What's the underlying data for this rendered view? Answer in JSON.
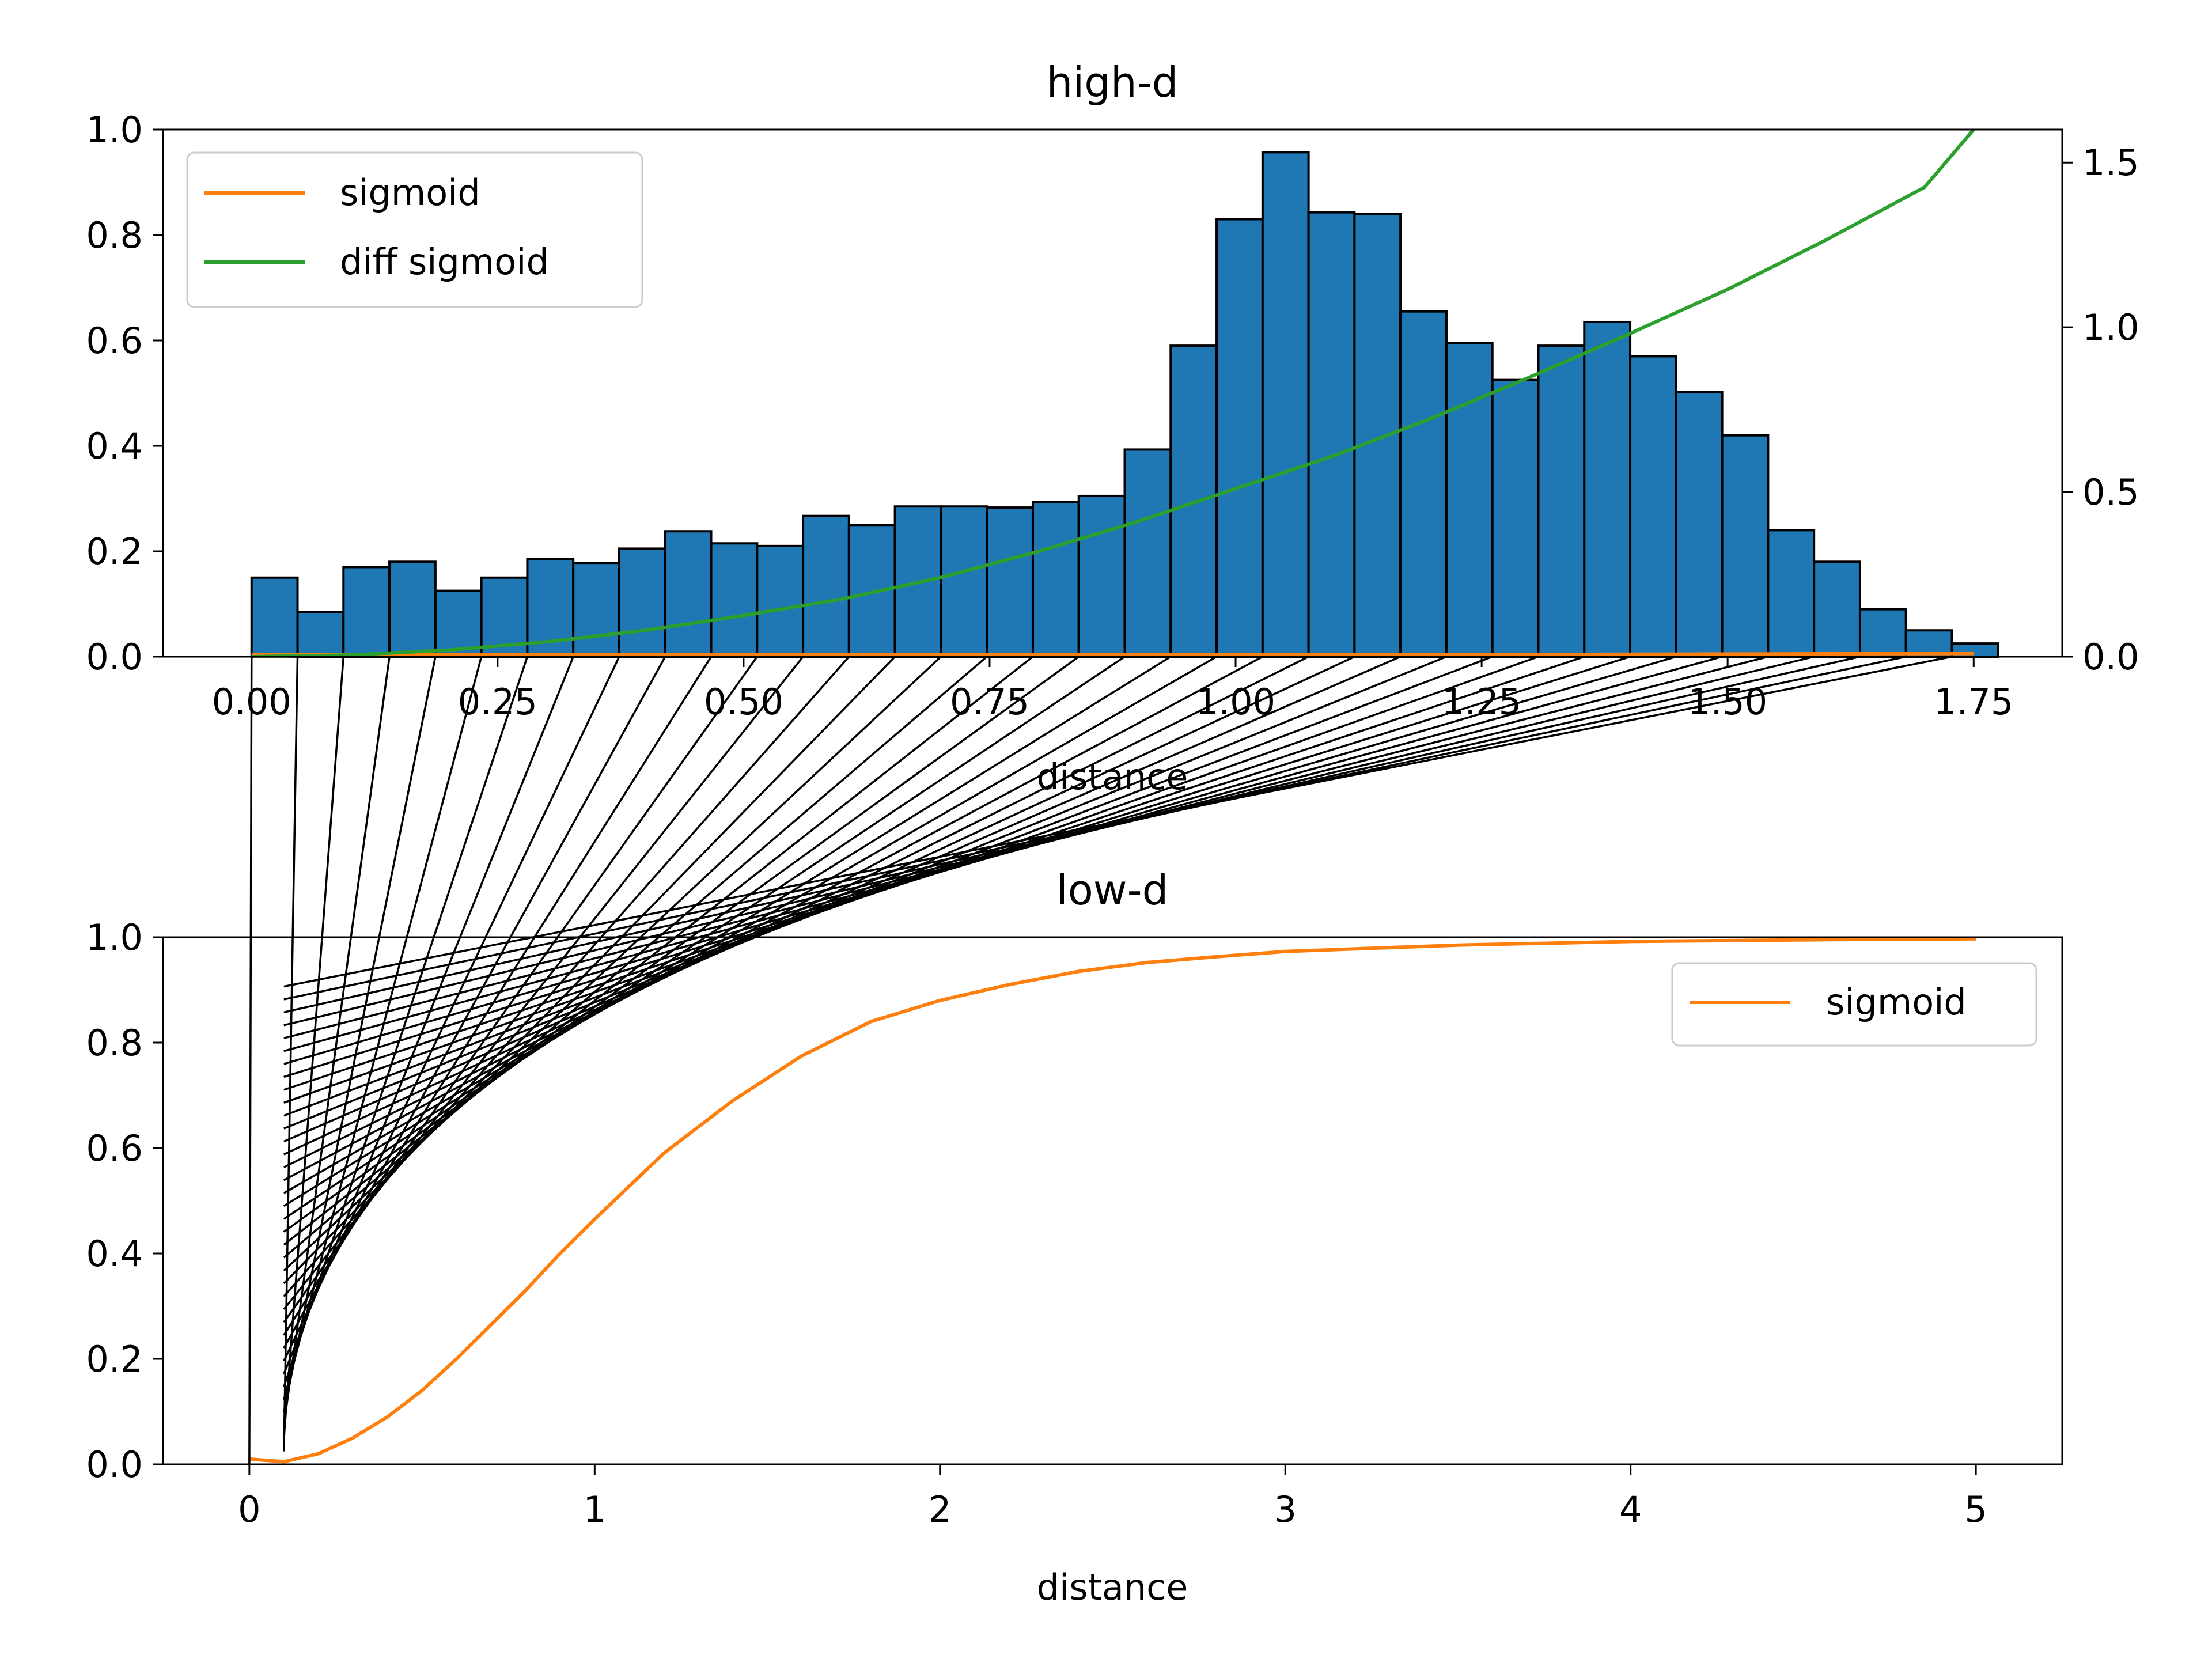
{
  "chart_data": [
    {
      "type": "bar",
      "title": "high-d",
      "xlabel": "distance",
      "ylabel": "",
      "xlim": [
        -0.09,
        1.84
      ],
      "ylim": [
        0,
        1.0
      ],
      "y2lim": [
        0,
        1.6
      ],
      "xticks": [
        0.0,
        0.25,
        0.5,
        0.75,
        1.0,
        1.25,
        1.5,
        1.75
      ],
      "xtick_labels": [
        "0.00",
        "0.25",
        "0.50",
        "0.75",
        "1.00",
        "1.25",
        "1.50",
        "1.75"
      ],
      "yticks": [
        0.0,
        0.2,
        0.4,
        0.6,
        0.8,
        1.0
      ],
      "ytick_labels": [
        "0.0",
        "0.2",
        "0.4",
        "0.6",
        "0.8",
        "1.0"
      ],
      "y2ticks": [
        0.0,
        0.5,
        1.0,
        1.5
      ],
      "y2tick_labels": [
        "0.0",
        "0.5",
        "1.0",
        "1.5"
      ],
      "bin_start": 0.0,
      "bin_width": 0.0467,
      "histogram": [
        0.15,
        0.085,
        0.17,
        0.18,
        0.125,
        0.15,
        0.185,
        0.178,
        0.205,
        0.238,
        0.215,
        0.21,
        0.267,
        0.25,
        0.285,
        0.285,
        0.283,
        0.293,
        0.305,
        0.393,
        0.59,
        0.83,
        0.957,
        0.843,
        0.84,
        0.655,
        0.595,
        0.525,
        0.59,
        0.635,
        0.57,
        0.502,
        0.42,
        0.24,
        0.18,
        0.09,
        0.05,
        0.025
      ],
      "series": [
        {
          "name": "sigmoid",
          "color": "#ff7f0e",
          "axis": "left",
          "x": [
            0.0,
            0.25,
            0.5,
            0.75,
            1.0,
            1.25,
            1.5,
            1.75
          ],
          "y": [
            0.004,
            0.004,
            0.004,
            0.004,
            0.004,
            0.004,
            0.005,
            0.006
          ]
        },
        {
          "name": "diff sigmoid",
          "color": "#2ca02c",
          "axis": "right",
          "x": [
            0.0,
            0.1,
            0.2,
            0.3,
            0.4,
            0.5,
            0.6,
            0.7,
            0.8,
            0.9,
            1.0,
            1.1,
            1.2,
            1.3,
            1.4,
            1.5,
            1.6,
            1.7,
            1.75
          ],
          "y": [
            0.0,
            0.005,
            0.02,
            0.045,
            0.08,
            0.125,
            0.175,
            0.24,
            0.32,
            0.41,
            0.51,
            0.61,
            0.725,
            0.85,
            0.98,
            1.115,
            1.265,
            1.425,
            1.6
          ]
        }
      ],
      "legend_position": "upper-left",
      "bar_color": "#1f77b4",
      "edge_color": "#000000"
    },
    {
      "type": "line",
      "title": "low-d",
      "xlabel": "distance",
      "ylabel": "",
      "xlim": [
        -0.25,
        5.25
      ],
      "ylim": [
        0,
        1.0
      ],
      "xticks": [
        0,
        1,
        2,
        3,
        4,
        5
      ],
      "xtick_labels": [
        "0",
        "1",
        "2",
        "3",
        "4",
        "5"
      ],
      "yticks": [
        0.0,
        0.2,
        0.4,
        0.6,
        0.8,
        1.0
      ],
      "ytick_labels": [
        "0.0",
        "0.2",
        "0.4",
        "0.6",
        "0.8",
        "1.0"
      ],
      "series": [
        {
          "name": "sigmoid",
          "color": "#ff7f0e",
          "x": [
            0.0,
            0.1,
            0.2,
            0.3,
            0.4,
            0.5,
            0.6,
            0.7,
            0.8,
            0.9,
            1.0,
            1.2,
            1.4,
            1.6,
            1.8,
            2.0,
            2.2,
            2.4,
            2.6,
            2.8,
            3.0,
            3.5,
            4.0,
            4.5,
            5.0
          ],
          "y": [
            0.01,
            0.005,
            0.02,
            0.05,
            0.09,
            0.14,
            0.2,
            0.265,
            0.33,
            0.4,
            0.465,
            0.59,
            0.69,
            0.775,
            0.84,
            0.88,
            0.91,
            0.935,
            0.952,
            0.963,
            0.973,
            0.985,
            0.992,
            0.995,
            0.997
          ]
        }
      ],
      "legend_position": "upper-right",
      "mapping_lines": {
        "count": 38,
        "color": "#000000",
        "highd_x_start": 0.0,
        "highd_x_step": 0.0467,
        "lowd_y_start": 0.0,
        "lowd_y_step": 0.0245,
        "lowd_x_anchor": [
          0.0,
          0.1
        ]
      }
    }
  ]
}
